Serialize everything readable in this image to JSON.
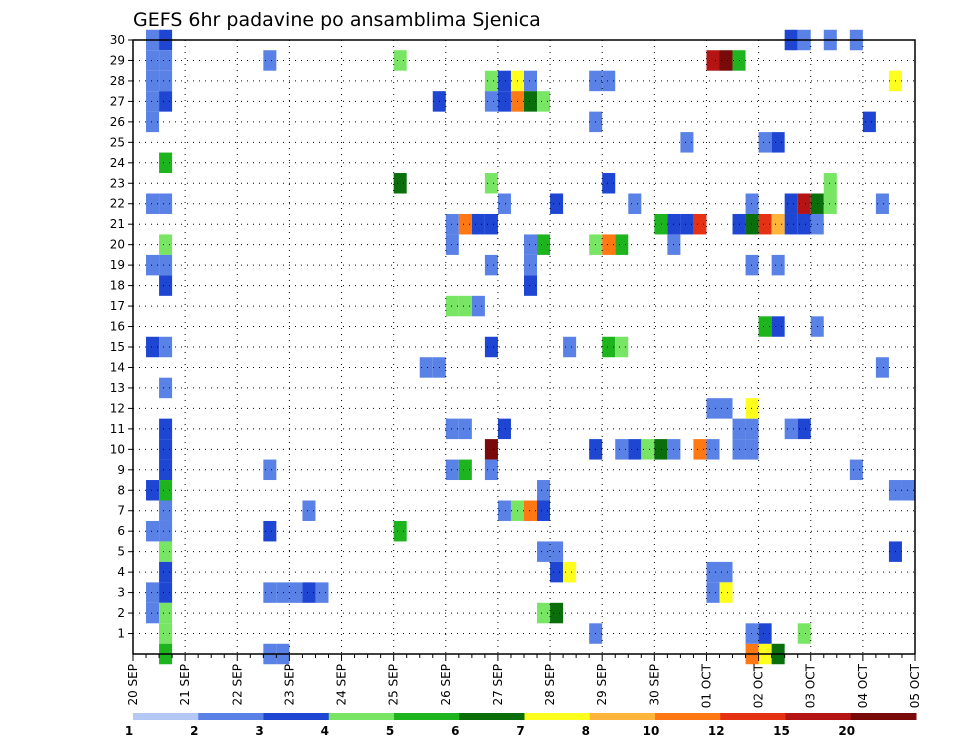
{
  "chart_data": {
    "type": "heatmap",
    "title": "GEFS 6hr padavine po ansamblima Sjenica",
    "x_labels": [
      "20 SEP",
      "21 SEP",
      "22 SEP",
      "23 SEP",
      "24 SEP",
      "25 SEP",
      "26 SEP",
      "27 SEP",
      "28 SEP",
      "29 SEP",
      "30 SEP",
      "01 OCT",
      "02 OCT",
      "03 OCT",
      "04 OCT",
      "05 OCT"
    ],
    "y_labels": [
      "1",
      "2",
      "3",
      "4",
      "5",
      "6",
      "7",
      "8",
      "9",
      "10",
      "11",
      "12",
      "13",
      "14",
      "15",
      "16",
      "17",
      "18",
      "19",
      "20",
      "21",
      "22",
      "23",
      "24",
      "25",
      "26",
      "27",
      "28",
      "29",
      "30"
    ],
    "x_range_steps": [
      0,
      60
    ],
    "y_range": [
      0,
      30
    ],
    "grid": true,
    "legend": {
      "placement": "bottom",
      "labels": [
        "1",
        "2",
        "3",
        "4",
        "5",
        "6",
        "7",
        "8",
        "10",
        "12",
        "15",
        "20"
      ],
      "colors": [
        "#b4c8f5",
        "#5a82e6",
        "#1e46d2",
        "#78e664",
        "#1eb41e",
        "#0a6e0a",
        "#ffff1e",
        "#ffb43c",
        "#ff7814",
        "#e63214",
        "#b41414",
        "#780a0a"
      ]
    },
    "cells": [
      [
        1,
        30,
        1
      ],
      [
        2,
        30,
        2
      ],
      [
        1,
        29,
        1
      ],
      [
        2,
        29,
        1
      ],
      [
        1,
        28,
        1
      ],
      [
        2,
        28,
        1
      ],
      [
        1,
        27,
        1
      ],
      [
        2,
        27,
        2
      ],
      [
        1,
        26,
        1
      ],
      [
        2,
        24,
        4
      ],
      [
        1,
        22,
        1
      ],
      [
        2,
        22,
        1
      ],
      [
        2,
        20,
        3
      ],
      [
        1,
        19,
        1
      ],
      [
        2,
        19,
        1
      ],
      [
        2,
        18,
        2
      ],
      [
        1,
        15,
        2
      ],
      [
        2,
        15,
        1
      ],
      [
        2,
        13,
        1
      ],
      [
        2,
        11,
        2
      ],
      [
        2,
        10,
        2
      ],
      [
        2,
        9,
        2
      ],
      [
        1,
        8,
        2
      ],
      [
        2,
        8,
        4
      ],
      [
        2,
        7,
        1
      ],
      [
        1,
        6,
        1
      ],
      [
        2,
        6,
        1
      ],
      [
        2,
        5,
        3
      ],
      [
        2,
        4,
        2
      ],
      [
        1,
        3,
        1
      ],
      [
        2,
        3,
        2
      ],
      [
        1,
        2,
        1
      ],
      [
        2,
        2,
        3
      ],
      [
        2,
        1,
        3
      ],
      [
        2,
        0,
        4
      ],
      [
        10,
        29,
        1
      ],
      [
        10,
        9,
        1
      ],
      [
        10,
        6,
        2
      ],
      [
        10,
        3,
        1
      ],
      [
        11,
        3,
        1
      ],
      [
        12,
        3,
        1
      ],
      [
        13,
        3,
        2
      ],
      [
        14,
        3,
        1
      ],
      [
        10,
        0,
        1
      ],
      [
        11,
        0,
        1
      ],
      [
        13,
        7,
        1
      ],
      [
        20,
        29,
        3
      ],
      [
        20,
        23,
        5
      ],
      [
        20,
        6,
        4
      ],
      [
        22,
        14,
        1
      ],
      [
        23,
        14,
        1
      ],
      [
        23,
        27,
        2
      ],
      [
        24,
        21,
        1
      ],
      [
        25,
        21,
        8
      ],
      [
        24,
        20,
        1
      ],
      [
        24,
        17,
        3
      ],
      [
        25,
        17,
        3
      ],
      [
        26,
        17,
        1
      ],
      [
        24,
        11,
        1
      ],
      [
        25,
        11,
        1
      ],
      [
        24,
        9,
        1
      ],
      [
        25,
        9,
        4
      ],
      [
        26,
        21,
        2
      ],
      [
        27,
        21,
        2
      ],
      [
        27,
        28,
        3
      ],
      [
        28,
        28,
        2
      ],
      [
        29,
        28,
        6
      ],
      [
        30,
        28,
        1
      ],
      [
        27,
        27,
        1
      ],
      [
        28,
        27,
        2
      ],
      [
        29,
        27,
        8
      ],
      [
        30,
        27,
        5
      ],
      [
        31,
        27,
        3
      ],
      [
        27,
        23,
        3
      ],
      [
        27,
        10,
        11
      ],
      [
        27,
        9,
        1
      ],
      [
        27,
        19,
        1
      ],
      [
        27,
        15,
        2
      ],
      [
        28,
        22,
        1
      ],
      [
        28,
        11,
        2
      ],
      [
        28,
        7,
        1
      ],
      [
        29,
        7,
        3
      ],
      [
        30,
        7,
        8
      ],
      [
        31,
        7,
        2
      ],
      [
        30,
        20,
        1
      ],
      [
        31,
        20,
        4
      ],
      [
        30,
        19,
        1
      ],
      [
        30,
        18,
        2
      ],
      [
        31,
        8,
        1
      ],
      [
        31,
        5,
        1
      ],
      [
        32,
        5,
        1
      ],
      [
        32,
        4,
        2
      ],
      [
        33,
        4,
        6
      ],
      [
        31,
        2,
        3
      ],
      [
        32,
        2,
        5
      ],
      [
        32,
        22,
        2
      ],
      [
        33,
        15,
        1
      ],
      [
        35,
        28,
        1
      ],
      [
        36,
        28,
        1
      ],
      [
        35,
        26,
        1
      ],
      [
        35,
        20,
        3
      ],
      [
        36,
        20,
        8
      ],
      [
        37,
        20,
        4
      ],
      [
        36,
        15,
        4
      ],
      [
        37,
        15,
        3
      ],
      [
        35,
        10,
        2
      ],
      [
        36,
        23,
        2
      ],
      [
        35,
        1,
        1
      ],
      [
        37,
        10,
        1
      ],
      [
        38,
        10,
        2
      ],
      [
        39,
        10,
        3
      ],
      [
        40,
        10,
        5
      ],
      [
        41,
        10,
        1
      ],
      [
        38,
        22,
        1
      ],
      [
        40,
        21,
        4
      ],
      [
        41,
        21,
        2
      ],
      [
        42,
        21,
        2
      ],
      [
        43,
        21,
        9
      ],
      [
        41,
        20,
        1
      ],
      [
        42,
        25,
        1
      ],
      [
        43,
        10,
        8
      ],
      [
        44,
        12,
        1
      ],
      [
        45,
        12,
        1
      ],
      [
        44,
        10,
        1
      ],
      [
        45,
        4,
        1
      ],
      [
        44,
        3,
        1
      ],
      [
        44,
        4,
        1
      ],
      [
        45,
        3,
        6
      ],
      [
        44,
        29,
        10
      ],
      [
        45,
        29,
        11
      ],
      [
        46,
        29,
        4
      ],
      [
        46,
        21,
        2
      ],
      [
        47,
        21,
        5
      ],
      [
        48,
        21,
        9
      ],
      [
        49,
        21,
        7
      ],
      [
        46,
        11,
        1
      ],
      [
        47,
        11,
        1
      ],
      [
        47,
        10,
        1
      ],
      [
        46,
        10,
        1
      ],
      [
        47,
        12,
        6
      ],
      [
        47,
        0,
        8
      ],
      [
        48,
        0,
        6
      ],
      [
        49,
        0,
        5
      ],
      [
        47,
        1,
        1
      ],
      [
        48,
        1,
        2
      ],
      [
        48,
        16,
        4
      ],
      [
        49,
        16,
        2
      ],
      [
        49,
        25,
        2
      ],
      [
        48,
        25,
        1
      ],
      [
        47,
        22,
        1
      ],
      [
        49,
        19,
        1
      ],
      [
        47,
        19,
        1
      ],
      [
        50,
        30,
        2
      ],
      [
        51,
        30,
        1
      ],
      [
        50,
        22,
        2
      ],
      [
        51,
        22,
        10
      ],
      [
        50,
        21,
        2
      ],
      [
        51,
        21,
        2
      ],
      [
        52,
        21,
        1
      ],
      [
        52,
        16,
        1
      ],
      [
        50,
        11,
        1
      ],
      [
        51,
        11,
        2
      ],
      [
        51,
        1,
        3
      ],
      [
        52,
        22,
        5
      ],
      [
        53,
        22,
        3
      ],
      [
        53,
        23,
        3
      ],
      [
        53,
        30,
        1
      ],
      [
        55,
        30,
        1
      ],
      [
        55,
        9,
        1
      ],
      [
        56,
        26,
        2
      ],
      [
        57,
        14,
        1
      ],
      [
        57,
        22,
        1
      ],
      [
        58,
        28,
        6
      ],
      [
        58,
        8,
        1
      ],
      [
        59,
        8,
        1
      ],
      [
        58,
        5,
        2
      ]
    ]
  }
}
